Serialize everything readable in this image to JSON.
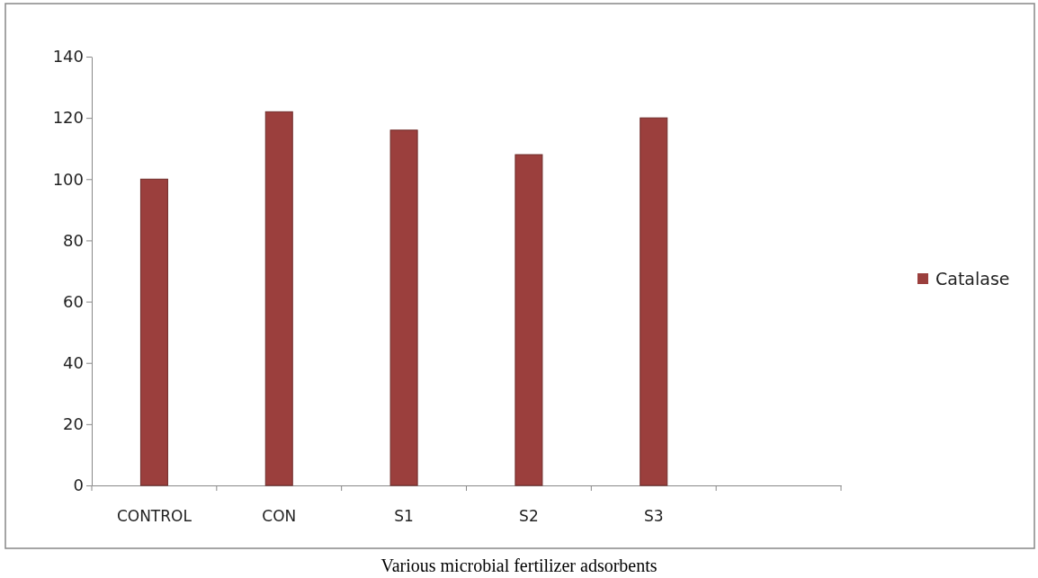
{
  "chart_data": {
    "type": "bar",
    "xlabel": "Various microbial fertilizer adsorbents",
    "categories": [
      "CONTROL",
      "CON",
      "S1",
      "S2",
      "S3",
      null
    ],
    "series": [
      {
        "name": "Catalase",
        "color": "#9b3f3d",
        "values": [
          100,
          122,
          116,
          108,
          120,
          null
        ]
      }
    ],
    "ylim": [
      0,
      140
    ],
    "yticks": [
      0,
      20,
      40,
      60,
      80,
      100,
      120,
      140
    ],
    "grid": false,
    "legend": "right"
  }
}
